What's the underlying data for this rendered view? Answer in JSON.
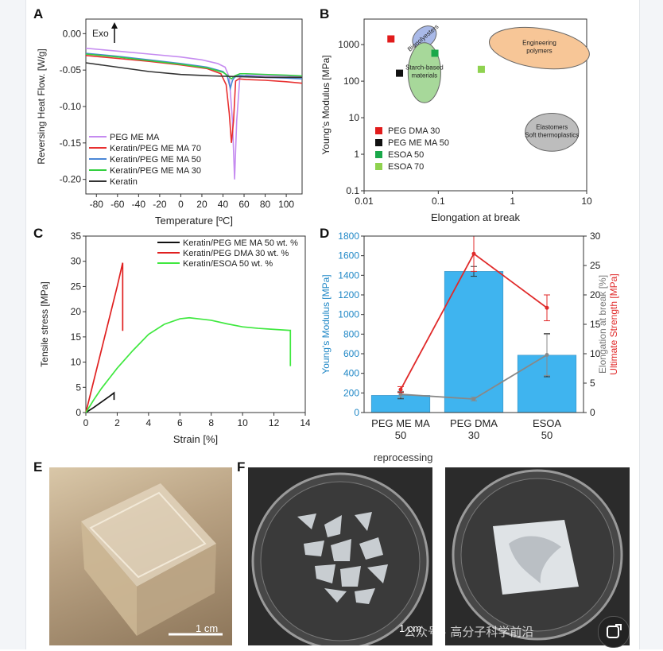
{
  "panel_labels": {
    "A": "A",
    "B": "B",
    "C": "C",
    "D": "D",
    "E": "E",
    "F": "F"
  },
  "chart_data": [
    {
      "panel": "A",
      "type": "line",
      "xlabel": "Temperature [ºC]",
      "ylabel": "Reversing Heat Flow. [W/g]",
      "annotation": "Exo",
      "xlim": [
        -90,
        115
      ],
      "ylim": [
        -0.22,
        0.02
      ],
      "xticks": [
        -80,
        -60,
        -40,
        -20,
        0,
        20,
        40,
        60,
        80,
        100
      ],
      "yticks": [
        0.0,
        -0.05,
        -0.1,
        -0.15,
        -0.2
      ],
      "ytick_labels": [
        "0.00",
        "-0.05",
        "-0.10",
        "-0.15",
        "-0.20"
      ],
      "legend": "bottom-left",
      "series": [
        {
          "name": "PEG ME MA",
          "color": "#c58bf0",
          "x": [
            -90,
            -60,
            -30,
            0,
            20,
            35,
            42,
            46,
            49,
            51,
            53,
            56,
            62,
            80,
            100,
            115
          ],
          "y": [
            -0.02,
            -0.024,
            -0.028,
            -0.032,
            -0.036,
            -0.041,
            -0.046,
            -0.06,
            -0.12,
            -0.2,
            -0.12,
            -0.06,
            -0.057,
            -0.058,
            -0.058,
            -0.059
          ]
        },
        {
          "name": "Keratin/PEG ME MA 70",
          "color": "#e83030",
          "x": [
            -90,
            -60,
            -30,
            0,
            25,
            38,
            43,
            46,
            48,
            50,
            52,
            55,
            62,
            80,
            100,
            115
          ],
          "y": [
            -0.03,
            -0.034,
            -0.038,
            -0.043,
            -0.048,
            -0.055,
            -0.07,
            -0.11,
            -0.15,
            -0.12,
            -0.065,
            -0.062,
            -0.063,
            -0.064,
            -0.066,
            -0.068
          ]
        },
        {
          "name": "Keratin/PEG ME MA 50",
          "color": "#4a86d6",
          "x": [
            -90,
            -60,
            -30,
            0,
            25,
            40,
            44,
            47,
            49,
            51,
            54,
            62,
            80,
            100,
            115
          ],
          "y": [
            -0.027,
            -0.031,
            -0.036,
            -0.041,
            -0.046,
            -0.052,
            -0.058,
            -0.075,
            -0.064,
            -0.06,
            -0.057,
            -0.058,
            -0.06,
            -0.061,
            -0.062
          ]
        },
        {
          "name": "Keratin/PEG ME MA 30",
          "color": "#33d040",
          "x": [
            -90,
            -60,
            -30,
            0,
            25,
            40,
            45,
            48,
            51,
            56,
            62,
            80,
            100,
            115
          ],
          "y": [
            -0.028,
            -0.032,
            -0.037,
            -0.042,
            -0.047,
            -0.053,
            -0.058,
            -0.062,
            -0.058,
            -0.055,
            -0.055,
            -0.056,
            -0.057,
            -0.058
          ]
        },
        {
          "name": "Keratin",
          "color": "#333333",
          "x": [
            -90,
            -60,
            -30,
            0,
            30,
            55,
            80,
            100,
            115
          ],
          "y": [
            -0.04,
            -0.046,
            -0.052,
            -0.056,
            -0.058,
            -0.059,
            -0.06,
            -0.06,
            -0.06
          ]
        }
      ]
    },
    {
      "panel": "B",
      "type": "scatter",
      "xlabel": "Elongation at break",
      "ylabel": "Young's Modulus [MPa]",
      "xscale": "log",
      "yscale": "log",
      "xlim": [
        0.01,
        10
      ],
      "ylim": [
        0.1,
        5000
      ],
      "xticks": [
        0.01,
        0.1,
        1,
        10
      ],
      "xtick_labels": [
        "0.01",
        "0.1",
        "1",
        "10"
      ],
      "yticks": [
        0.1,
        1,
        10,
        100,
        1000
      ],
      "ytick_labels": [
        "0.1",
        "1",
        "10",
        "100",
        "1000"
      ],
      "legend": "bottom-left",
      "points": [
        {
          "name": "PEG DMA 30",
          "color": "#e11b1b",
          "x": 0.023,
          "y": 1430
        },
        {
          "name": "PEG ME MA 50",
          "color": "#111111",
          "x": 0.03,
          "y": 165
        },
        {
          "name": "ESOA 50",
          "color": "#1aa84a",
          "x": 0.09,
          "y": 580
        },
        {
          "name": "ESOA 70",
          "color": "#8fd24f",
          "x": 0.38,
          "y": 210
        }
      ],
      "regions": [
        {
          "label": "Biopolyesters",
          "color": "#a9b9e8",
          "cx": 0.065,
          "cy": 1600,
          "rx": 0.18,
          "ry": 0.26,
          "rot": -40
        },
        {
          "label_lines": [
            "Starch-based",
            "materials"
          ],
          "color": "#a7d89a",
          "cx": 0.065,
          "cy": 170,
          "rx": 0.22,
          "ry": 0.82
        },
        {
          "label_lines": [
            "Engineering",
            "polymers"
          ],
          "color": "#f7c697",
          "cx": 2.3,
          "cy": 800,
          "rx": 0.68,
          "ry": 0.54,
          "rot": 8
        },
        {
          "label_lines": [
            "Elastomers",
            "Soft thermoplastics"
          ],
          "color": "#bdbdbd",
          "cx": 3.4,
          "cy": 4,
          "rx": 0.36,
          "ry": 0.52
        }
      ]
    },
    {
      "panel": "C",
      "type": "line",
      "xlabel": "Strain [%]",
      "ylabel": "Tensile stress [MPa]",
      "xlim": [
        0,
        14
      ],
      "ylim": [
        0,
        35
      ],
      "xticks": [
        0,
        2,
        4,
        6,
        8,
        10,
        12,
        14
      ],
      "yticks": [
        0,
        5,
        10,
        15,
        20,
        25,
        30,
        35
      ],
      "legend": "top-right",
      "series": [
        {
          "name": "Keratin/PEG ME MA 50 wt. %",
          "color": "#111111",
          "x": [
            0,
            0.5,
            1.0,
            1.5,
            1.8,
            1.8
          ],
          "y": [
            0,
            1.0,
            2.1,
            3.2,
            3.9,
            2.5
          ]
        },
        {
          "name": "Keratin/PEG DMA 30 wt. %",
          "color": "#e02020",
          "x": [
            0,
            0.4,
            0.8,
            1.2,
            1.6,
            2.0,
            2.35,
            2.35
          ],
          "y": [
            0,
            5,
            10,
            15,
            20,
            25,
            29.7,
            16.2
          ]
        },
        {
          "name": "Keratin/ESOA 50 wt. %",
          "color": "#3fe83f",
          "x": [
            0,
            0.5,
            1,
            1.5,
            2,
            3,
            4,
            5,
            6,
            6.6,
            8,
            9,
            10,
            11,
            12,
            13,
            13.05,
            13.05
          ],
          "y": [
            0,
            2.5,
            4.8,
            6.8,
            8.8,
            12.3,
            15.5,
            17.5,
            18.6,
            18.8,
            18.3,
            17.6,
            17.0,
            16.7,
            16.5,
            16.3,
            16.3,
            9.2
          ]
        }
      ]
    },
    {
      "panel": "D",
      "type": "bar",
      "categories": [
        "PEG ME MA\n50",
        "PEG DMA\n30",
        "ESOA\n50"
      ],
      "category_lines": [
        [
          "PEG ME MA",
          "50"
        ],
        [
          "PEG DMA",
          "30"
        ],
        [
          "ESOA",
          "50"
        ]
      ],
      "ylabel": "Young's Modulus [MPa]",
      "ylabel_right_1": "Elongation at break [%]",
      "ylabel_right_2": "Ultimate Strength [MPa]",
      "ylim": [
        0,
        1800
      ],
      "ylim_right": [
        0,
        30
      ],
      "yticks": [
        0,
        200,
        400,
        600,
        800,
        1000,
        1200,
        1400,
        1600,
        1800
      ],
      "yticks_right": [
        0,
        5,
        10,
        15,
        20,
        25,
        30
      ],
      "series": [
        {
          "name": "Young's Modulus",
          "color": "#3fb4ef",
          "values": [
            175,
            1440,
            585
          ],
          "errors": [
            35,
            50,
            220
          ]
        },
        {
          "name": "Elongation at break",
          "color": "#888888",
          "values": [
            3.1,
            2.3,
            9.8
          ],
          "errors": [
            0.5,
            0.3,
            3.5
          ]
        },
        {
          "name": "Ultimate Strength",
          "color": "#e02a2a",
          "values": [
            3.9,
            27.0,
            17.8
          ],
          "errors": [
            0.5,
            3.0,
            2.2
          ]
        }
      ]
    }
  ],
  "photos": {
    "reprocessing_label": "reprocessing",
    "scale_bar_E": "1 cm",
    "scale_bar_F": "1 cm",
    "watermark": "公众号 · 高分子科学前沿"
  }
}
